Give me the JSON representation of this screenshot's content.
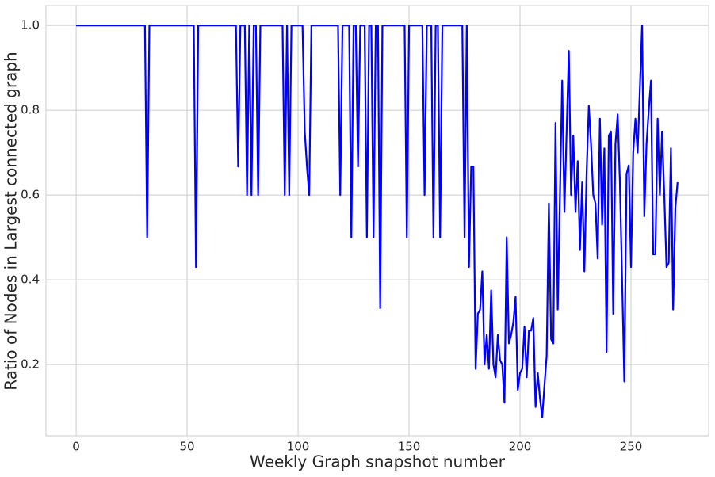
{
  "chart_data": {
    "type": "line",
    "xlabel": "Weekly Graph snapshot number",
    "ylabel": "Ratio of Nodes in Largest connected graph",
    "color": "#0000ff",
    "grid": true,
    "xlim": [
      -13.6,
      285
    ],
    "ylim": [
      0.032,
      1.047
    ],
    "xticks": [
      0,
      50,
      100,
      150,
      200,
      250
    ],
    "yticks": [
      0.2,
      0.4,
      0.6,
      0.8,
      {
        "value": 1,
        "label": "1.0"
      }
    ],
    "x": [
      0,
      1,
      2,
      3,
      4,
      5,
      6,
      7,
      8,
      9,
      10,
      11,
      12,
      13,
      14,
      15,
      16,
      17,
      18,
      19,
      20,
      21,
      22,
      23,
      24,
      25,
      26,
      27,
      28,
      29,
      30,
      31,
      32,
      33,
      34,
      35,
      36,
      37,
      38,
      39,
      40,
      41,
      42,
      43,
      44,
      45,
      46,
      47,
      48,
      49,
      50,
      51,
      52,
      53,
      54,
      55,
      56,
      57,
      58,
      59,
      60,
      61,
      62,
      63,
      64,
      65,
      66,
      67,
      68,
      69,
      70,
      71,
      72,
      73,
      74,
      75,
      76,
      77,
      78,
      79,
      80,
      81,
      82,
      83,
      84,
      85,
      86,
      87,
      88,
      89,
      90,
      91,
      92,
      93,
      94,
      95,
      96,
      97,
      98,
      99,
      100,
      101,
      102,
      103,
      104,
      105,
      106,
      107,
      108,
      109,
      110,
      111,
      112,
      113,
      114,
      115,
      116,
      117,
      118,
      119,
      120,
      121,
      122,
      123,
      124,
      125,
      126,
      127,
      128,
      129,
      130,
      131,
      132,
      133,
      134,
      135,
      136,
      137,
      138,
      139,
      140,
      141,
      142,
      143,
      144,
      145,
      146,
      147,
      148,
      149,
      150,
      151,
      152,
      153,
      154,
      155,
      156,
      157,
      158,
      159,
      160,
      161,
      162,
      163,
      164,
      165,
      166,
      167,
      168,
      169,
      170,
      171,
      172,
      173,
      174,
      175,
      176,
      177,
      178,
      179,
      180,
      181,
      182,
      183,
      184,
      185,
      186,
      187,
      188,
      189,
      190,
      191,
      192,
      193,
      194,
      195,
      196,
      197,
      198,
      199,
      200,
      201,
      202,
      203,
      204,
      205,
      206,
      207,
      208,
      209,
      210,
      211,
      212,
      213,
      214,
      215,
      216,
      217,
      218,
      219,
      220,
      221,
      222,
      223,
      224,
      225,
      226,
      227,
      228,
      229,
      230,
      231,
      232,
      233,
      234,
      235,
      236,
      237,
      238,
      239,
      240,
      241,
      242,
      243,
      244,
      245,
      246,
      247,
      248,
      249,
      250,
      251,
      252,
      253,
      254,
      255,
      256,
      257,
      258,
      259,
      260,
      261,
      262,
      263,
      264,
      265,
      266,
      267,
      268,
      269,
      270,
      271
    ],
    "values": [
      1,
      1,
      1,
      1,
      1,
      1,
      1,
      1,
      1,
      1,
      1,
      1,
      1,
      1,
      1,
      1,
      1,
      1,
      1,
      1,
      1,
      1,
      1,
      1,
      1,
      1,
      1,
      1,
      1,
      1,
      1,
      1,
      0.5,
      1,
      1,
      1,
      1,
      1,
      1,
      1,
      1,
      1,
      1,
      1,
      1,
      1,
      1,
      1,
      1,
      1,
      1,
      1,
      1,
      1,
      0.43,
      1,
      1,
      1,
      1,
      1,
      1,
      1,
      1,
      1,
      1,
      1,
      1,
      1,
      1,
      1,
      1,
      1,
      1,
      0.667,
      1,
      1,
      1,
      0.6,
      1,
      0.6,
      1,
      1,
      0.6,
      1,
      1,
      1,
      1,
      1,
      1,
      1,
      1,
      1,
      1,
      1,
      0.6,
      1,
      0.6,
      1,
      1,
      1,
      1,
      1,
      1,
      0.75,
      0.667,
      0.6,
      1,
      1,
      1,
      1,
      1,
      1,
      1,
      1,
      1,
      1,
      1,
      1,
      1,
      0.6,
      1,
      1,
      1,
      1,
      0.5,
      1,
      1,
      0.667,
      1,
      1,
      1,
      0.5,
      1,
      1,
      0.5,
      1,
      1,
      0.333,
      1,
      1,
      1,
      1,
      1,
      1,
      1,
      1,
      1,
      1,
      1,
      0.5,
      1,
      1,
      1,
      1,
      1,
      1,
      1,
      0.6,
      1,
      1,
      1,
      0.5,
      1,
      1,
      0.5,
      1,
      1,
      1,
      1,
      1,
      1,
      1,
      1,
      1,
      1,
      0.5,
      1,
      0.43,
      0.667,
      0.667,
      0.19,
      0.32,
      0.33,
      0.42,
      0.2,
      0.27,
      0.19,
      0.375,
      0.2,
      0.17,
      0.27,
      0.21,
      0.2,
      0.11,
      0.5,
      0.25,
      0.27,
      0.3,
      0.36,
      0.14,
      0.18,
      0.19,
      0.29,
      0.17,
      0.28,
      0.28,
      0.31,
      0.1,
      0.18,
      0.12,
      0.075,
      0.15,
      0.22,
      0.58,
      0.26,
      0.25,
      0.77,
      0.33,
      0.6,
      0.87,
      0.56,
      0.75,
      0.94,
      0.6,
      0.74,
      0.56,
      0.68,
      0.47,
      0.63,
      0.42,
      0.65,
      0.81,
      0.72,
      0.6,
      0.58,
      0.45,
      0.78,
      0.53,
      0.71,
      0.23,
      0.74,
      0.75,
      0.32,
      0.72,
      0.79,
      0.63,
      0.4,
      0.16,
      0.65,
      0.67,
      0.43,
      0.7,
      0.78,
      0.7,
      0.85,
      1,
      0.55,
      0.72,
      0.8,
      0.87,
      0.46,
      0.46,
      0.78,
      0.6,
      0.75,
      0.6,
      0.43,
      0.44,
      0.71,
      0.33,
      0.57,
      0.63
    ]
  }
}
